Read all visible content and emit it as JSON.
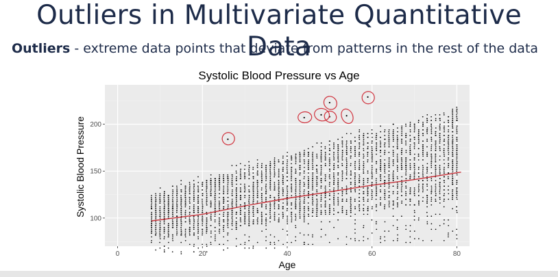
{
  "slide": {
    "title": "Outliers in Multivariate Quantitative Data",
    "subtitle_bold": "Outliers",
    "subtitle_rest": " - extreme data points that deviate from patterns in the rest of the data"
  },
  "chart_data": {
    "type": "scatter",
    "title": "Systolic Blood Pressure vs Age",
    "xlabel": "Age",
    "ylabel": "Systolic Blood Pressure",
    "xlim": [
      -3,
      83
    ],
    "ylim": [
      70,
      242
    ],
    "x_ticks": [
      0,
      20,
      40,
      60,
      80
    ],
    "y_ticks": [
      100,
      150,
      200
    ],
    "x_tick_labels": [
      "0",
      "20",
      "40",
      "60",
      "80"
    ],
    "y_tick_labels": [
      "100",
      "150",
      "200"
    ],
    "grid": true,
    "age_range": [
      8,
      80
    ],
    "trend_line": {
      "color": "#c8323a",
      "x": [
        8,
        20,
        30,
        40,
        50,
        60,
        70,
        81
      ],
      "y": [
        97,
        104,
        113,
        121,
        128,
        135,
        141,
        149
      ]
    },
    "outliers": [
      {
        "x": 26,
        "y": 184
      },
      {
        "x": 44,
        "y": 207
      },
      {
        "x": 48,
        "y": 210
      },
      {
        "x": 50,
        "y": 208
      },
      {
        "x": 50,
        "y": 223
      },
      {
        "x": 54,
        "y": 209
      },
      {
        "x": 59,
        "y": 229
      }
    ],
    "colors": {
      "panel": "#ebebeb",
      "grid_major": "#ffffff",
      "grid_minor": "#f3f3f3",
      "point": "#000000",
      "circle": "#d0313c"
    }
  }
}
